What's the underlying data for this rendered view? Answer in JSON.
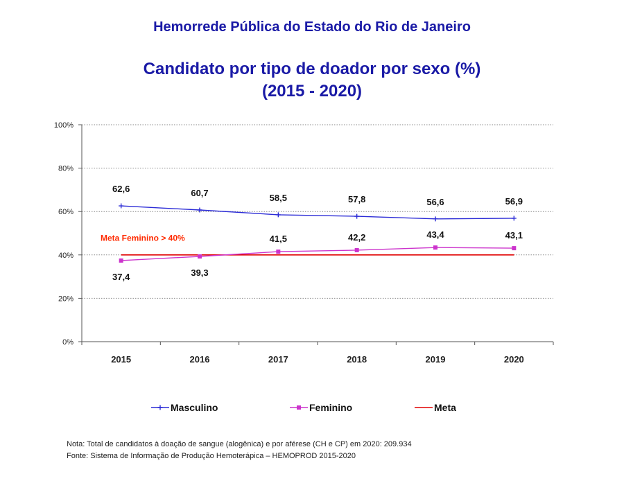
{
  "header": {
    "title": "Hemorrede Pública do Estado do Rio de Janeiro"
  },
  "chart_title": {
    "line1": "Candidato por tipo de doador por sexo (%)",
    "line2": "(2015 - 2020)"
  },
  "chart_data": {
    "type": "line",
    "title": "Candidato por tipo de doador por sexo (%)",
    "subtitle": "(2015 - 2020)",
    "x": [
      "2015",
      "2016",
      "2017",
      "2018",
      "2019",
      "2020"
    ],
    "ylim": [
      0,
      100
    ],
    "yticks": [
      "0%",
      "20%",
      "40%",
      "60%",
      "80%",
      "100%"
    ],
    "grid": true,
    "legend_position": "bottom",
    "series": [
      {
        "name": "Masculino",
        "values": [
          62.6,
          60.7,
          58.5,
          57.8,
          56.6,
          56.9
        ],
        "labels": [
          "62,6",
          "60,7",
          "58,5",
          "57,8",
          "56,6",
          "56,9"
        ],
        "color": "#2b2bd6",
        "marker": "plus"
      },
      {
        "name": "Feminino",
        "values": [
          37.4,
          39.3,
          41.5,
          42.2,
          43.4,
          43.1
        ],
        "labels": [
          "37,4",
          "39,3",
          "41,5",
          "42,2",
          "43,4",
          "43,1"
        ],
        "color": "#cc33cc",
        "marker": "square"
      },
      {
        "name": "Meta",
        "values": [
          40,
          40,
          40,
          40,
          40,
          40
        ],
        "color": "#e00000",
        "marker": "none"
      }
    ],
    "annotations": [
      {
        "text": "Meta Feminino > 40%",
        "color": "#ff2a00"
      }
    ]
  },
  "notes": {
    "nota": "Nota: Total de candidatos à doação de sangue (alogênica) e por aférese (CH e CP) em 2020: 209.934",
    "fonte": "Fonte: Sistema de Informação de Produção Hemoterápica – HEMOPROD 2015-2020"
  }
}
